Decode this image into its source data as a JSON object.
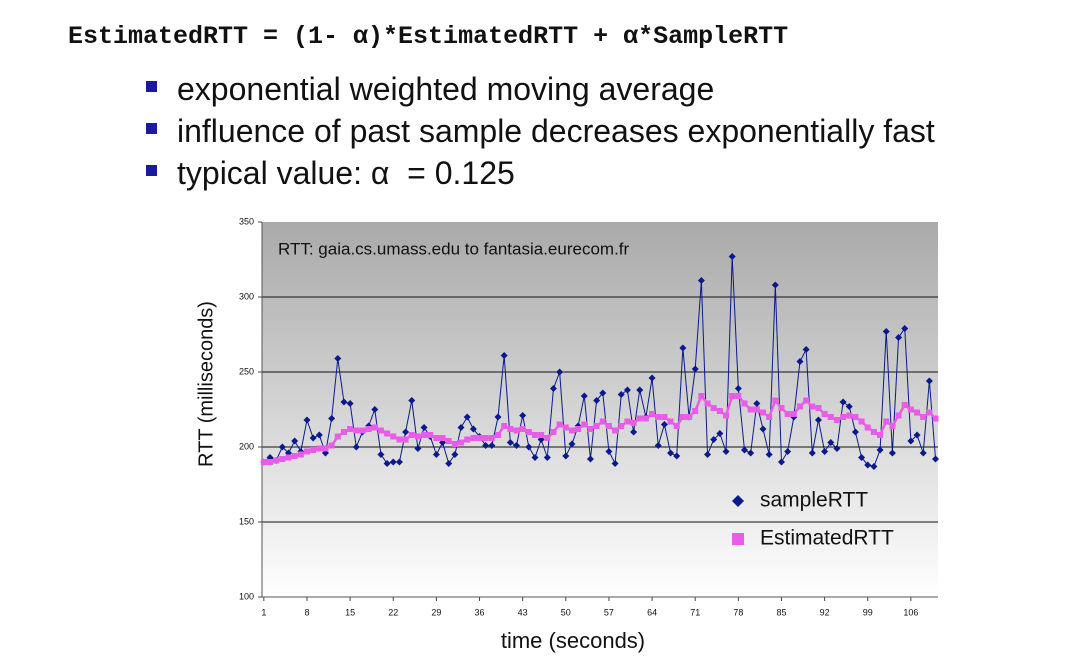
{
  "header": {
    "formula": "EstimatedRTT = (1- α)*EstimatedRTT + α*SampleRTT"
  },
  "bullets": [
    "exponential weighted moving average",
    "influence of past sample decreases exponentially fast",
    "typical value: α  = 0.125"
  ],
  "chart_data": {
    "type": "line",
    "annotation": "RTT: gaia.cs.umass.edu to fantasia.eurecom.fr",
    "x_label": "time (seconds)",
    "y_label": "RTT (milliseconds)",
    "x": [
      1,
      2,
      3,
      4,
      5,
      6,
      7,
      8,
      9,
      10,
      11,
      12,
      13,
      14,
      15,
      16,
      17,
      18,
      19,
      20,
      21,
      22,
      23,
      24,
      25,
      26,
      27,
      28,
      29,
      30,
      31,
      32,
      33,
      34,
      35,
      36,
      37,
      38,
      39,
      40,
      41,
      42,
      43,
      44,
      45,
      46,
      47,
      48,
      49,
      50,
      51,
      52,
      53,
      54,
      55,
      56,
      57,
      58,
      59,
      60,
      61,
      62,
      63,
      64,
      65,
      66,
      67,
      68,
      69,
      70,
      71,
      72,
      73,
      74,
      75,
      76,
      77,
      78,
      79,
      80,
      81,
      82,
      83,
      84,
      85,
      86,
      87,
      88,
      89,
      90,
      91,
      92,
      93,
      94,
      95,
      96,
      97,
      98,
      99,
      100,
      101,
      102,
      103,
      104,
      105,
      106,
      107,
      108,
      109,
      110
    ],
    "series": [
      {
        "name": "sampleRTT",
        "color": "#0a1a8c",
        "marker": "diamond",
        "values": [
          190,
          193,
          191,
          200,
          196,
          204,
          197,
          218,
          206,
          208,
          196,
          219,
          259,
          230,
          229,
          200,
          210,
          214,
          225,
          195,
          189,
          190,
          190,
          210,
          231,
          199,
          213,
          207,
          195,
          203,
          189,
          195,
          213,
          220,
          212,
          207,
          201,
          201,
          220,
          261,
          203,
          201,
          221,
          200,
          193,
          205,
          193,
          239,
          250,
          194,
          202,
          214,
          234,
          192,
          231,
          236,
          197,
          189,
          235,
          238,
          210,
          238,
          220,
          246,
          201,
          215,
          196,
          194,
          266,
          220,
          252,
          311,
          195,
          205,
          209,
          197,
          327,
          239,
          198,
          196,
          229,
          212,
          195,
          308,
          190,
          197,
          220,
          257,
          265,
          196,
          218,
          197,
          203,
          199,
          230,
          227,
          210,
          193,
          188,
          187,
          198,
          277,
          196,
          273,
          279,
          204,
          208,
          196,
          244,
          192
        ]
      },
      {
        "name": "EstimatedRTT",
        "color": "#e85ce8",
        "marker": "square",
        "values": [
          190,
          190,
          191,
          192,
          193,
          194,
          195,
          197,
          198,
          199,
          199,
          201,
          207,
          210,
          212,
          211,
          211,
          212,
          213,
          211,
          209,
          207,
          205,
          205,
          208,
          207,
          208,
          208,
          206,
          206,
          204,
          202,
          203,
          205,
          206,
          206,
          206,
          206,
          208,
          214,
          212,
          211,
          212,
          210,
          208,
          208,
          206,
          210,
          215,
          213,
          211,
          212,
          215,
          212,
          214,
          217,
          214,
          211,
          214,
          217,
          216,
          219,
          219,
          222,
          220,
          220,
          217,
          214,
          220,
          220,
          224,
          234,
          229,
          226,
          224,
          221,
          234,
          234,
          229,
          225,
          225,
          223,
          220,
          231,
          226,
          222,
          222,
          227,
          231,
          227,
          226,
          222,
          220,
          218,
          220,
          221,
          220,
          217,
          213,
          210,
          208,
          217,
          214,
          221,
          228,
          225,
          223,
          220,
          223,
          219
        ]
      }
    ],
    "xlim": [
      0.7,
      110.4
    ],
    "xticks": [
      1,
      8,
      15,
      22,
      29,
      36,
      43,
      50,
      57,
      64,
      71,
      78,
      85,
      92,
      99,
      106
    ],
    "ylim": [
      100,
      350
    ],
    "yticks": [
      100,
      150,
      200,
      250,
      300,
      350
    ],
    "grid": true,
    "legend": "lower right"
  }
}
